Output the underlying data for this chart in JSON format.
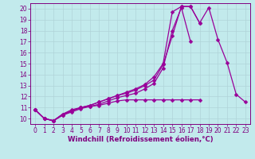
{
  "title": "",
  "xlabel": "Windchill (Refroidissement éolien,°C)",
  "ylabel": "",
  "bg_color": "#c2eaec",
  "line_color": "#990099",
  "grid_color": "#b0d4d8",
  "xlim": [
    -0.5,
    23.5
  ],
  "ylim": [
    9.5,
    20.5
  ],
  "xticks": [
    0,
    1,
    2,
    3,
    4,
    5,
    6,
    7,
    8,
    9,
    10,
    11,
    12,
    13,
    14,
    15,
    16,
    17,
    18,
    19,
    20,
    21,
    22,
    23
  ],
  "yticks": [
    10,
    11,
    12,
    13,
    14,
    15,
    16,
    17,
    18,
    19,
    20
  ],
  "curves": [
    {
      "x": [
        0,
        1,
        2,
        3,
        4,
        5,
        6,
        7,
        8,
        9,
        10,
        11,
        12,
        13,
        14,
        15,
        16,
        17,
        18,
        19,
        20,
        21,
        22,
        23
      ],
      "y": [
        10.8,
        10.0,
        9.8,
        10.4,
        10.8,
        11.0,
        11.2,
        11.5,
        11.8,
        12.1,
        12.4,
        12.7,
        13.1,
        13.8,
        15.0,
        19.7,
        20.2,
        20.2,
        18.7,
        20.1,
        17.2,
        15.1,
        12.2,
        11.5
      ]
    },
    {
      "x": [
        0,
        1,
        2,
        3,
        4,
        5,
        6,
        7,
        8,
        9,
        10,
        11,
        12,
        13,
        14,
        15,
        16,
        17,
        18,
        19,
        20,
        21,
        22,
        23
      ],
      "y": [
        10.8,
        10.0,
        9.8,
        10.4,
        10.7,
        11.0,
        11.2,
        11.5,
        11.8,
        12.1,
        12.3,
        12.6,
        13.0,
        13.5,
        14.9,
        17.5,
        20.2,
        20.2,
        18.7,
        null,
        null,
        null,
        null,
        null
      ]
    },
    {
      "x": [
        0,
        1,
        2,
        3,
        4,
        5,
        6,
        7,
        8,
        9,
        10,
        11,
        12,
        13,
        14,
        15,
        16,
        17,
        18,
        19,
        20,
        21,
        22,
        23
      ],
      "y": [
        10.8,
        10.0,
        9.8,
        10.3,
        10.7,
        11.0,
        11.1,
        11.3,
        11.6,
        11.9,
        12.1,
        12.3,
        12.7,
        13.2,
        14.6,
        18.0,
        20.1,
        17.0,
        null,
        null,
        null,
        null,
        null,
        null
      ]
    },
    {
      "x": [
        0,
        1,
        2,
        3,
        4,
        5,
        6,
        7,
        8,
        9,
        10,
        11,
        12,
        13,
        14,
        15,
        16,
        17,
        18,
        19,
        20,
        21,
        22,
        23
      ],
      "y": [
        10.8,
        10.0,
        9.8,
        10.3,
        10.6,
        10.9,
        11.1,
        11.2,
        11.4,
        11.6,
        11.7,
        11.7,
        11.7,
        11.7,
        11.7,
        11.7,
        11.7,
        11.7,
        11.7,
        null,
        null,
        null,
        null,
        null
      ]
    }
  ],
  "font_color": "#800080",
  "tick_fontsize": 5.5,
  "label_fontsize": 6.2,
  "markersize": 2.5,
  "linewidth": 0.9
}
